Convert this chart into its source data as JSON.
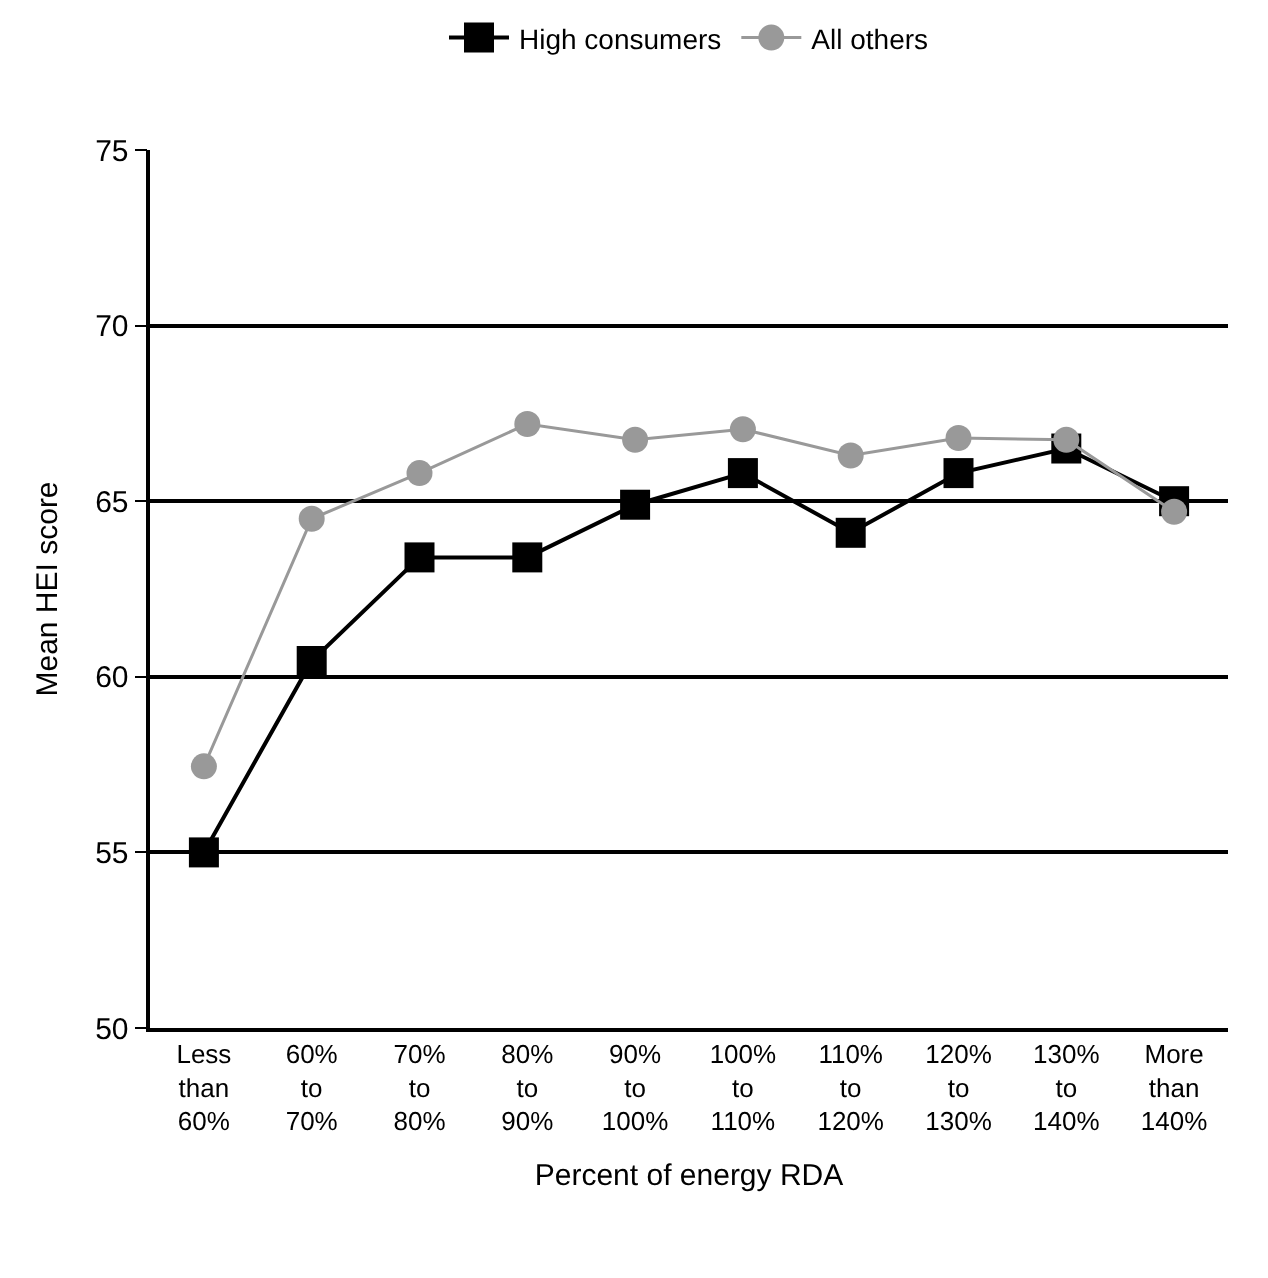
{
  "chart_data": {
    "type": "line",
    "xlabel": "Percent of energy RDA",
    "ylabel": "Mean HEI score",
    "categories": [
      "Less\nthan\n60%",
      "60%\nto\n70%",
      "70%\nto\n80%",
      "80%\nto\n90%",
      "90%\nto\n100%",
      "100%\nto\n110%",
      "110%\nto\n120%",
      "120%\nto\n130%",
      "130%\nto\n140%",
      "More\nthan\n140%"
    ],
    "series": [
      {
        "name": "High consumers",
        "color": "#000000",
        "marker": "square",
        "values": [
          55.0,
          60.45,
          63.4,
          63.4,
          64.9,
          65.8,
          64.1,
          65.8,
          66.5,
          65.0
        ]
      },
      {
        "name": "All others",
        "color": "#999999",
        "marker": "circle",
        "values": [
          57.45,
          64.5,
          65.8,
          67.2,
          66.75,
          67.05,
          66.3,
          66.8,
          66.75,
          64.7
        ]
      }
    ],
    "ylim": [
      50,
      75
    ],
    "yticks": [
      50,
      55,
      60,
      65,
      70,
      75
    ],
    "grid": "y",
    "legend": "top",
    "line_style": "solid"
  }
}
